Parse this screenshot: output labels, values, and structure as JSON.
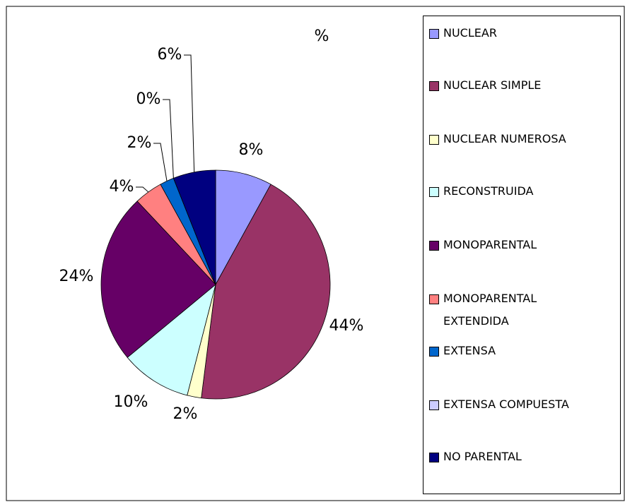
{
  "chart_data": {
    "type": "pie",
    "title": "%",
    "categories": [
      "NUCLEAR",
      "NUCLEAR SIMPLE",
      "NUCLEAR NUMEROSA",
      "RECONSTRUIDA",
      "MONOPARENTAL",
      "MONOPARENTAL EXTENDIDA",
      "EXTENSA",
      "EXTENSA COMPUESTA",
      "NO PARENTAL"
    ],
    "values": [
      8,
      44,
      2,
      10,
      24,
      4,
      2,
      0,
      6
    ],
    "value_labels": [
      "8%",
      "44%",
      "2%",
      "10%",
      "24%",
      "4%",
      "2%",
      "0%",
      "6%"
    ],
    "colors": [
      "#9999ff",
      "#993366",
      "#ffffcc",
      "#ccffff",
      "#660066",
      "#ff8080",
      "#0066cc",
      "#ccccff",
      "#000080"
    ],
    "legend": "right"
  }
}
